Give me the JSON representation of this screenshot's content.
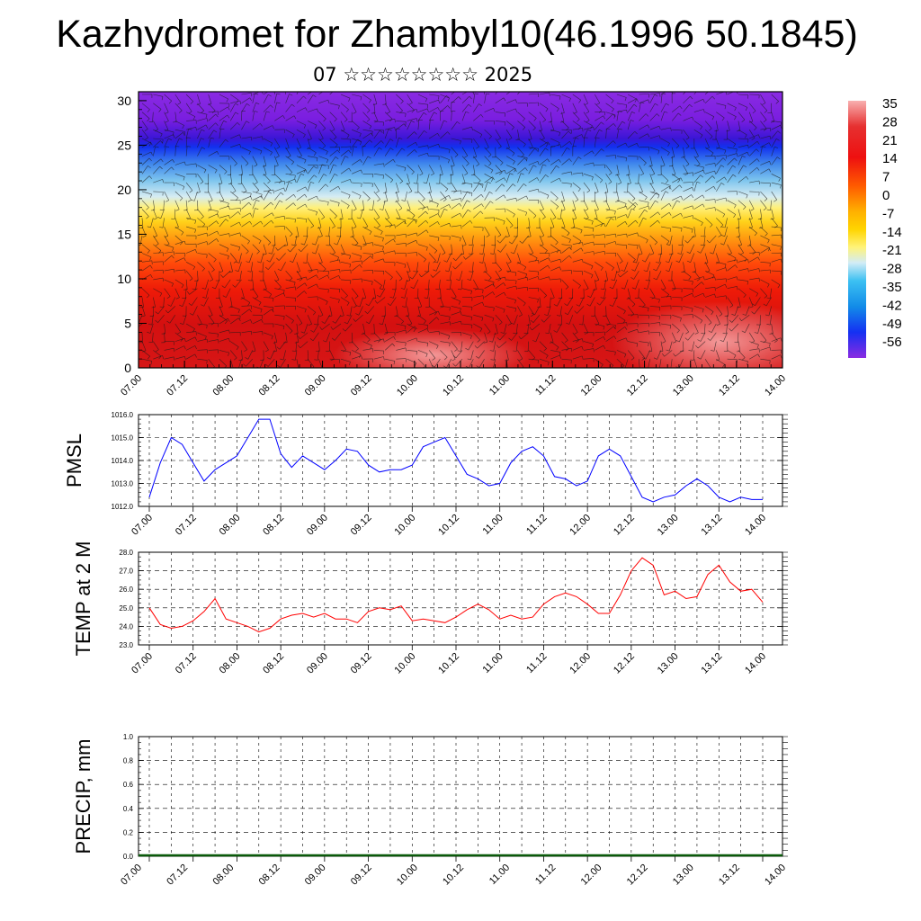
{
  "title": "Kazhydromet for Zhambyl10(46.1996 50.1845)",
  "subtitle": "07 ☆☆☆☆☆☆☆☆ 2025",
  "chart_data": [
    {
      "type": "heatmap",
      "x_tick_labels": [
        "07.00",
        "07.12",
        "08.00",
        "08.12",
        "09.00",
        "09.12",
        "10.00",
        "10.12",
        "11.00",
        "11.12",
        "12.00",
        "12.12",
        "13.00",
        "13.12",
        "14.00"
      ],
      "y_tick_labels": [
        "0",
        "5",
        "10",
        "15",
        "20",
        "25",
        "30"
      ],
      "ylim": [
        0,
        31
      ],
      "colorbar_labels": [
        "35",
        "28",
        "21",
        "14",
        "7",
        "0",
        "-7",
        "-14",
        "-21",
        "-28",
        "-35",
        "-42",
        "-49",
        "-56"
      ],
      "overlay": "wind-barbs"
    },
    {
      "type": "line",
      "ylabel": "PMSL",
      "ylim": [
        1012.0,
        1016.0
      ],
      "y_tick_labels": [
        "1016.0",
        "1015.0",
        "1014.0",
        "1013.0",
        "1012.0"
      ],
      "x_tick_labels": [
        "07.00",
        "07.12",
        "08.00",
        "08.12",
        "09.00",
        "09.12",
        "10.00",
        "10.12",
        "11.00",
        "11.12",
        "12.00",
        "12.12",
        "13.00",
        "13.12",
        "14.00"
      ],
      "color": "#0000ff",
      "values": [
        1012.4,
        1013.9,
        1015.0,
        1014.7,
        1013.9,
        1013.1,
        1013.6,
        1013.9,
        1014.2,
        1015.0,
        1015.8,
        1015.8,
        1014.3,
        1013.7,
        1014.2,
        1013.9,
        1013.6,
        1014.0,
        1014.5,
        1014.4,
        1013.8,
        1013.5,
        1013.6,
        1013.6,
        1013.8,
        1014.6,
        1014.8,
        1015.0,
        1014.2,
        1013.4,
        1013.2,
        1012.9,
        1013.0,
        1013.9,
        1014.4,
        1014.6,
        1014.2,
        1013.3,
        1013.2,
        1012.9,
        1013.1,
        1014.2,
        1014.5,
        1014.2,
        1013.3,
        1012.4,
        1012.2,
        1012.4,
        1012.5,
        1012.9,
        1013.2,
        1012.9,
        1012.4,
        1012.2,
        1012.4,
        1012.3,
        1012.3
      ]
    },
    {
      "type": "line",
      "ylabel": "TEMP at 2 M",
      "ylim": [
        23.0,
        28.0
      ],
      "y_tick_labels": [
        "28.0",
        "27.0",
        "26.0",
        "25.0",
        "24.0",
        "23.0"
      ],
      "x_tick_labels": [
        "07.00",
        "07.12",
        "08.00",
        "08.12",
        "09.00",
        "09.12",
        "10.00",
        "10.12",
        "11.00",
        "11.12",
        "12.00",
        "12.12",
        "13.00",
        "13.12",
        "14.00"
      ],
      "color": "#ff0000",
      "values": [
        25.0,
        24.1,
        23.9,
        24.0,
        24.3,
        24.8,
        25.5,
        24.4,
        24.2,
        24.0,
        23.7,
        23.9,
        24.4,
        24.6,
        24.7,
        24.5,
        24.7,
        24.4,
        24.4,
        24.2,
        24.8,
        25.0,
        24.9,
        25.1,
        24.3,
        24.4,
        24.3,
        24.2,
        24.5,
        24.9,
        25.2,
        24.9,
        24.4,
        24.6,
        24.4,
        24.5,
        25.2,
        25.6,
        25.8,
        25.6,
        25.2,
        24.7,
        24.7,
        25.7,
        27.0,
        27.7,
        27.3,
        25.7,
        25.9,
        25.5,
        25.6,
        26.8,
        27.3,
        26.4,
        25.9,
        26.0,
        25.3
      ]
    },
    {
      "type": "bar",
      "ylabel": "PRECIP, mm",
      "ylim": [
        0.0,
        1.0
      ],
      "y_tick_labels": [
        "1.0",
        "0.8",
        "0.6",
        "0.4",
        "0.2",
        "0.0"
      ],
      "x_tick_labels": [
        "07.00",
        "07.12",
        "08.00",
        "08.12",
        "09.00",
        "09.12",
        "10.00",
        "10.12",
        "11.00",
        "11.12",
        "12.00",
        "12.12",
        "13.00",
        "13.12",
        "14.00"
      ],
      "values": [
        0,
        0,
        0,
        0,
        0,
        0,
        0,
        0,
        0,
        0,
        0,
        0,
        0,
        0,
        0
      ]
    }
  ]
}
